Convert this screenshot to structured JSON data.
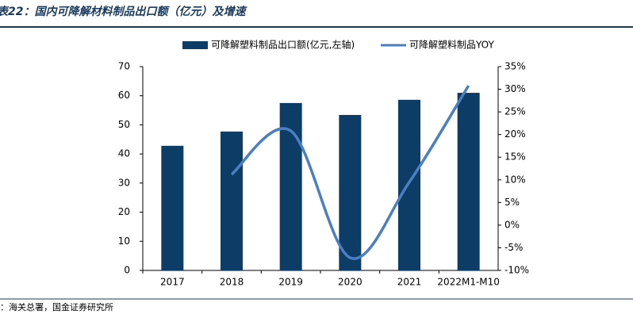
{
  "chart_data": {
    "type": "bar-line",
    "title": "表22：国内可降解材料制品出口额（亿元）及增速",
    "source": "：海关总署，国金证券研究所",
    "categories": [
      "2017",
      "2018",
      "2019",
      "2020",
      "2021",
      "2022M1-M10"
    ],
    "series": [
      {
        "name": "可降解塑料制品出口额(亿元,左轴)",
        "color": "#0d3d66",
        "type": "bar",
        "values": [
          42.8,
          47.7,
          57.5,
          53.4,
          58.6,
          61.0
        ]
      },
      {
        "name": "可降解塑料制品YOY",
        "color": "#4a7fc1",
        "type": "line",
        "axis": "y2",
        "values": [
          null,
          11.2,
          20.8,
          -7.2,
          9.5,
          30.8
        ]
      }
    ],
    "ylim": [
      0,
      70
    ],
    "yticks": [
      0,
      10,
      20,
      30,
      40,
      50,
      60,
      70
    ],
    "y2lim": [
      -10,
      35
    ],
    "y2ticks": [
      {
        "value": -10,
        "label": "-10%"
      },
      {
        "value": -5,
        "label": "-5%"
      },
      {
        "value": 0,
        "label": "0%"
      },
      {
        "value": 5,
        "label": "5%"
      },
      {
        "value": 10,
        "label": "10%"
      },
      {
        "value": 15,
        "label": "15%"
      },
      {
        "value": 20,
        "label": "20%"
      },
      {
        "value": 25,
        "label": "25%"
      },
      {
        "value": 30,
        "label": "30%"
      },
      {
        "value": 35,
        "label": "35%"
      }
    ],
    "legend": "top",
    "grid": false
  }
}
